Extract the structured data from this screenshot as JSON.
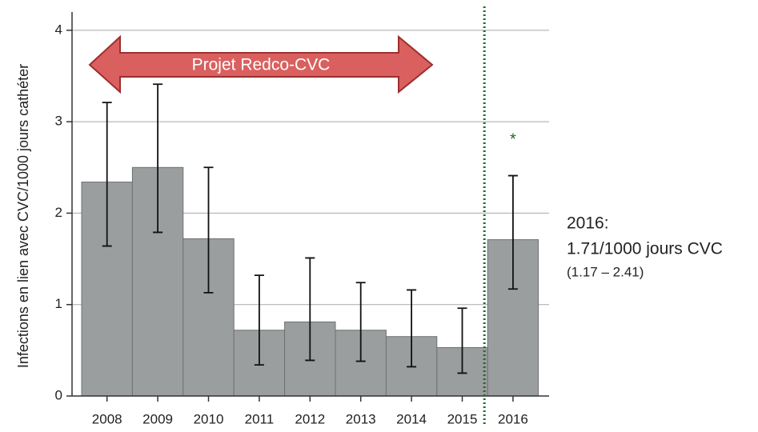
{
  "chart_data": {
    "type": "bar",
    "y_label": "Infections en lien avec CVC/1000 jours cathéter",
    "categories": [
      "2008",
      "2009",
      "2010",
      "2011",
      "2012",
      "2013",
      "2014",
      "2015",
      "2016"
    ],
    "values": [
      2.34,
      2.5,
      1.72,
      0.72,
      0.81,
      0.72,
      0.65,
      0.53,
      1.71
    ],
    "error_low": [
      1.64,
      1.79,
      1.13,
      0.34,
      0.39,
      0.38,
      0.32,
      0.25,
      1.17
    ],
    "error_high": [
      3.21,
      3.41,
      2.5,
      1.32,
      1.51,
      1.24,
      1.16,
      0.96,
      2.41
    ],
    "color": "#9b9e9e",
    "ylim": [
      0,
      4.2
    ],
    "yticks": [
      0,
      1,
      2,
      3,
      4
    ],
    "grid": true,
    "annotations": {
      "arrow_label": "Projet Redco-CVC",
      "marker": "*",
      "note_title": "2016:",
      "note_value": "1.71/1000 jours CVC",
      "note_ci": "(1.17 – 2.41)"
    }
  }
}
